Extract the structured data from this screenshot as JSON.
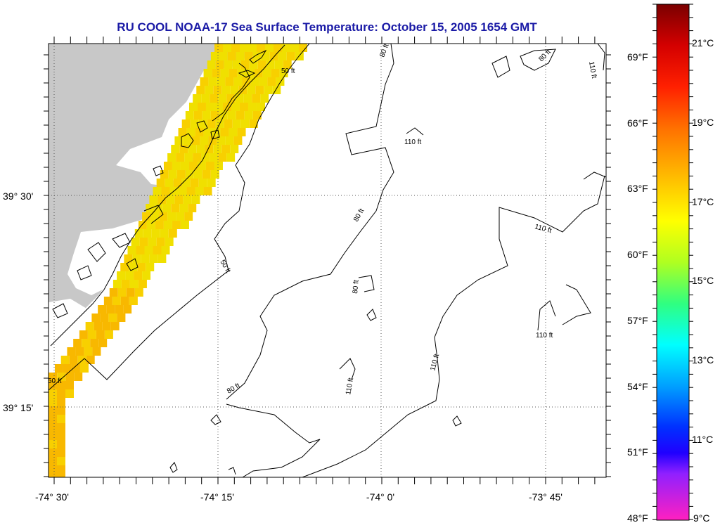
{
  "title": "RU COOL  NOAA-17  Sea Surface Temperature:  October 15, 2005 1654 GMT",
  "axes": {
    "lon_labels": [
      "-74° 30'",
      "-74° 15'",
      "-74° 0'",
      "-73° 45'"
    ],
    "lat_labels": [
      "39° 30'",
      "39° 15'"
    ]
  },
  "contours": {
    "labels": [
      "50 ft",
      "50 ft",
      "50 ft",
      "80 ft",
      "80 ft",
      "80 ft",
      "80 ft",
      "80 ft",
      "110 ft",
      "110 ft",
      "110 ft",
      "110 ft",
      "110 ft",
      "110 ft"
    ]
  },
  "colorbar": {
    "fahrenheit": [
      "69°F",
      "66°F",
      "63°F",
      "60°F",
      "57°F",
      "54°F",
      "51°F",
      "48°F"
    ],
    "celsius": [
      "21°C",
      "19°C",
      "17°C",
      "15°C",
      "13°C",
      "11°C",
      "9°C"
    ]
  },
  "colors": {
    "title": "#1a1aa6",
    "land": "#c8c8c8",
    "sst_warm": "#f8b800",
    "sst_mid": "#f8d000",
    "sst_cool": "#f0e000"
  }
}
